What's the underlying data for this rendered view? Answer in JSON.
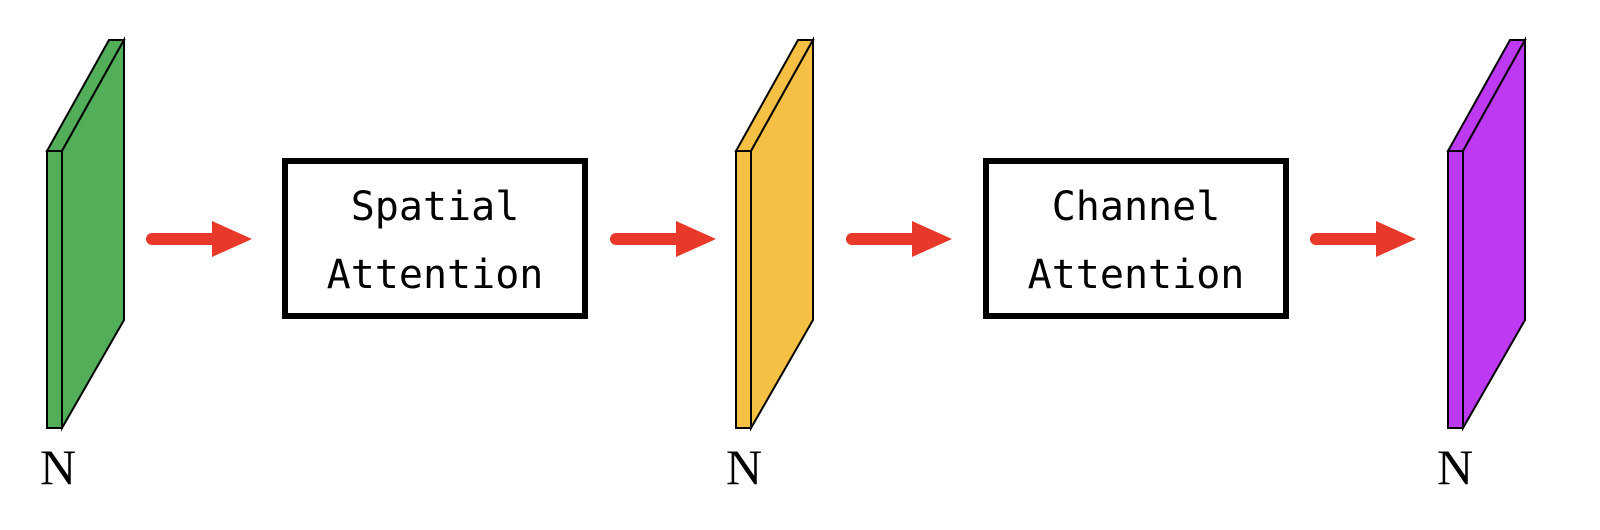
{
  "feature_maps": [
    {
      "label": "N",
      "color": "#52AE59"
    },
    {
      "label": "N",
      "color": "#F5C043"
    },
    {
      "label": "N",
      "color": "#BE39F2"
    }
  ],
  "modules": [
    {
      "line1": "Spatial",
      "line2": "Attention"
    },
    {
      "line1": "Channel",
      "line2": "Attention"
    }
  ],
  "arrow_color": "#E8382A"
}
